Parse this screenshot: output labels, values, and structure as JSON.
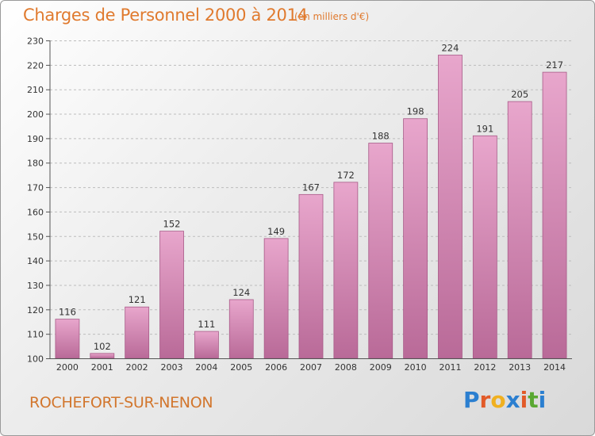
{
  "header": {
    "title": "Charges de Personnel 2000 à 2014",
    "unit": "(en milliers d'€)"
  },
  "footer": {
    "commune": "ROCHEFORT-SUR-NENON",
    "logo_letters": [
      "P",
      "r",
      "o",
      "x",
      "i",
      "t",
      "i"
    ],
    "logo_colors": [
      "#2b7fd0",
      "#e25a28",
      "#f0b020",
      "#2b7fd0",
      "#e25a28",
      "#5aa832",
      "#2b7fd0"
    ]
  },
  "colors": {
    "bar_top": "#e8a6cc",
    "bar_bottom": "#b96a98",
    "bar_edge": "#a85a88",
    "grid": "#bdbdbd",
    "axis": "#555555"
  },
  "chart_data": {
    "type": "bar",
    "title": "Charges de Personnel 2000 à 2014",
    "subtitle": "(en milliers d'€)",
    "xlabel": "",
    "ylabel": "",
    "categories": [
      "2000",
      "2001",
      "2002",
      "2003",
      "2004",
      "2005",
      "2006",
      "2007",
      "2008",
      "2009",
      "2010",
      "2011",
      "2012",
      "2013",
      "2014"
    ],
    "values": [
      116,
      102,
      121,
      152,
      111,
      124,
      149,
      167,
      172,
      188,
      198,
      224,
      191,
      205,
      217
    ],
    "ylim": [
      100,
      230
    ],
    "yticks": [
      100,
      110,
      120,
      130,
      140,
      150,
      160,
      170,
      180,
      190,
      200,
      210,
      220,
      230
    ],
    "grid": true,
    "legend": "none"
  }
}
